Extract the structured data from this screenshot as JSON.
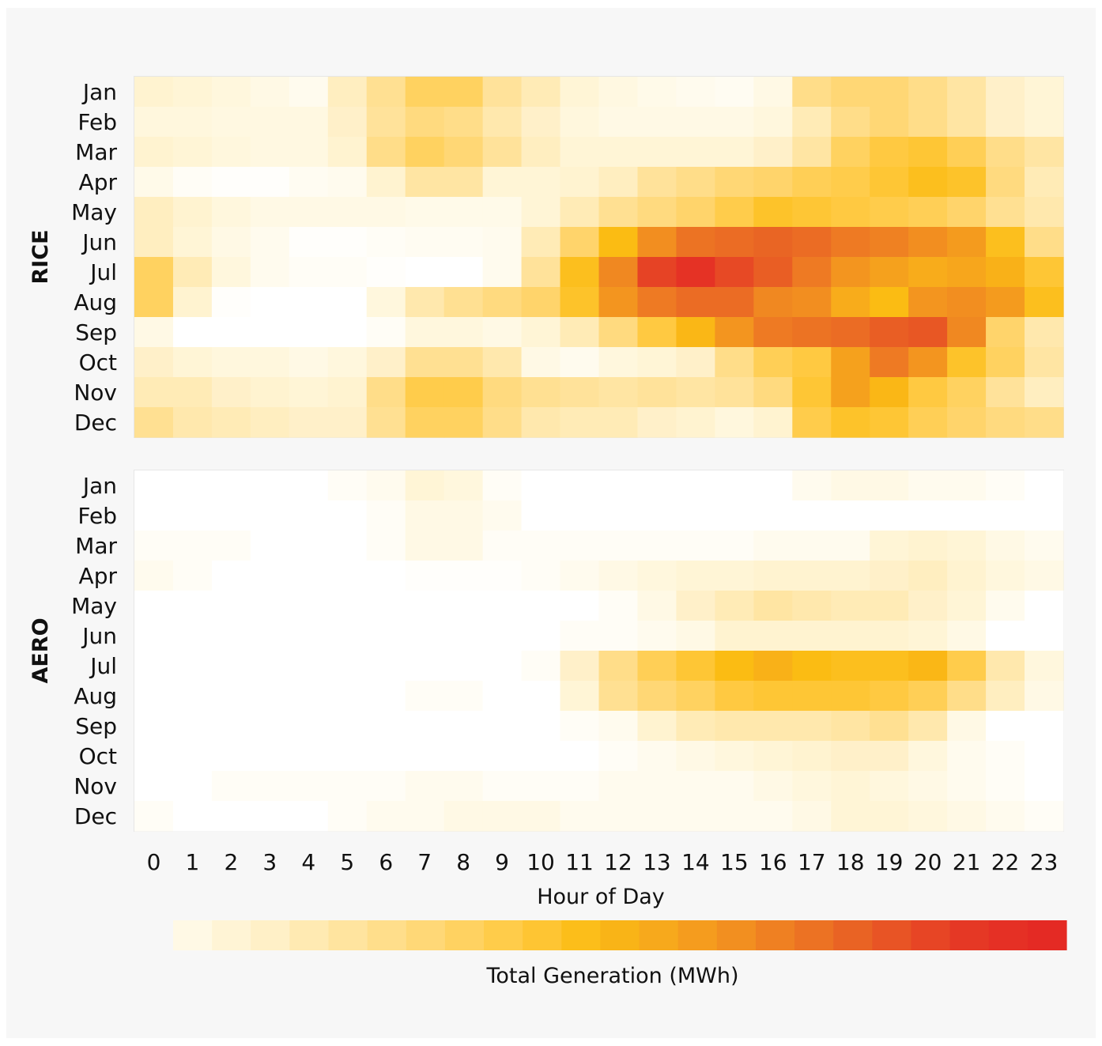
{
  "chart_data": {
    "type": "heatmap",
    "xlabel": "Hour of Day",
    "colorbar_label": "Total Generation (MWh)",
    "x": [
      "0",
      "1",
      "2",
      "3",
      "4",
      "5",
      "6",
      "7",
      "8",
      "9",
      "10",
      "11",
      "12",
      "13",
      "14",
      "15",
      "16",
      "17",
      "18",
      "19",
      "20",
      "21",
      "22",
      "23"
    ],
    "y": [
      "Jan",
      "Feb",
      "Mar",
      "Apr",
      "May",
      "Jun",
      "Jul",
      "Aug",
      "Sep",
      "Oct",
      "Nov",
      "Dec"
    ],
    "scale": "relative intensity 0-1 (colorbar has no printed ticks)",
    "colormap": [
      "#ffffff",
      "#fff8e0",
      "#fff0c8",
      "#ffe6a6",
      "#ffdc86",
      "#ffd262",
      "#ffc83c",
      "#fbbc13",
      "#f7a91c",
      "#f3941f",
      "#ee7c23",
      "#e96324",
      "#e74a25",
      "#e53425",
      "#e42a24"
    ],
    "panels": [
      {
        "name": "RICE",
        "z": [
          [
            0.12,
            0.1,
            0.08,
            0.06,
            0.04,
            0.16,
            0.26,
            0.36,
            0.36,
            0.24,
            0.18,
            0.1,
            0.07,
            0.05,
            0.04,
            0.03,
            0.06,
            0.28,
            0.32,
            0.32,
            0.28,
            0.22,
            0.14,
            0.1
          ],
          [
            0.08,
            0.08,
            0.07,
            0.07,
            0.07,
            0.14,
            0.24,
            0.3,
            0.28,
            0.2,
            0.14,
            0.08,
            0.06,
            0.06,
            0.06,
            0.06,
            0.08,
            0.18,
            0.28,
            0.32,
            0.28,
            0.22,
            0.14,
            0.1
          ],
          [
            0.12,
            0.1,
            0.08,
            0.07,
            0.07,
            0.12,
            0.28,
            0.36,
            0.32,
            0.24,
            0.16,
            0.1,
            0.1,
            0.1,
            0.1,
            0.1,
            0.14,
            0.22,
            0.36,
            0.42,
            0.44,
            0.38,
            0.28,
            0.22
          ],
          [
            0.05,
            0.02,
            0.01,
            0.01,
            0.03,
            0.04,
            0.12,
            0.22,
            0.22,
            0.1,
            0.1,
            0.12,
            0.16,
            0.24,
            0.28,
            0.32,
            0.34,
            0.38,
            0.4,
            0.44,
            0.48,
            0.46,
            0.3,
            0.18
          ],
          [
            0.16,
            0.12,
            0.08,
            0.06,
            0.06,
            0.06,
            0.06,
            0.05,
            0.05,
            0.05,
            0.1,
            0.18,
            0.26,
            0.3,
            0.34,
            0.4,
            0.46,
            0.44,
            0.42,
            0.4,
            0.38,
            0.34,
            0.26,
            0.2
          ],
          [
            0.16,
            0.1,
            0.06,
            0.04,
            0.01,
            0.01,
            0.02,
            0.03,
            0.03,
            0.04,
            0.18,
            0.34,
            0.5,
            0.66,
            0.74,
            0.76,
            0.78,
            0.76,
            0.72,
            0.7,
            0.66,
            0.62,
            0.48,
            0.28
          ],
          [
            0.36,
            0.18,
            0.08,
            0.04,
            0.02,
            0.02,
            0.01,
            0.0,
            0.0,
            0.04,
            0.24,
            0.48,
            0.68,
            0.88,
            0.94,
            0.86,
            0.8,
            0.72,
            0.64,
            0.6,
            0.56,
            0.58,
            0.54,
            0.44
          ],
          [
            0.36,
            0.12,
            0.01,
            0.0,
            0.0,
            0.0,
            0.08,
            0.2,
            0.26,
            0.3,
            0.34,
            0.46,
            0.64,
            0.72,
            0.76,
            0.76,
            0.68,
            0.66,
            0.56,
            0.5,
            0.64,
            0.66,
            0.62,
            0.48
          ],
          [
            0.06,
            0.0,
            0.0,
            0.0,
            0.0,
            0.0,
            0.02,
            0.08,
            0.08,
            0.06,
            0.1,
            0.18,
            0.3,
            0.42,
            0.52,
            0.64,
            0.72,
            0.74,
            0.76,
            0.8,
            0.82,
            0.68,
            0.34,
            0.2
          ],
          [
            0.14,
            0.1,
            0.08,
            0.08,
            0.06,
            0.08,
            0.14,
            0.26,
            0.26,
            0.2,
            0.06,
            0.04,
            0.08,
            0.1,
            0.14,
            0.28,
            0.38,
            0.42,
            0.6,
            0.72,
            0.64,
            0.46,
            0.36,
            0.22
          ],
          [
            0.18,
            0.18,
            0.14,
            0.12,
            0.1,
            0.12,
            0.28,
            0.4,
            0.4,
            0.3,
            0.26,
            0.24,
            0.22,
            0.24,
            0.22,
            0.24,
            0.3,
            0.44,
            0.6,
            0.52,
            0.42,
            0.36,
            0.24,
            0.16
          ],
          [
            0.26,
            0.2,
            0.18,
            0.16,
            0.14,
            0.14,
            0.26,
            0.36,
            0.36,
            0.28,
            0.2,
            0.18,
            0.18,
            0.14,
            0.12,
            0.08,
            0.12,
            0.4,
            0.46,
            0.44,
            0.38,
            0.34,
            0.3,
            0.28
          ]
        ]
      },
      {
        "name": "AERO",
        "z": [
          [
            0.0,
            0.0,
            0.0,
            0.0,
            0.0,
            0.02,
            0.04,
            0.1,
            0.08,
            0.02,
            0.0,
            0.0,
            0.0,
            0.0,
            0.0,
            0.0,
            0.0,
            0.04,
            0.06,
            0.06,
            0.04,
            0.04,
            0.02,
            0.0
          ],
          [
            0.0,
            0.0,
            0.0,
            0.0,
            0.0,
            0.0,
            0.02,
            0.06,
            0.06,
            0.04,
            0.0,
            0.0,
            0.0,
            0.0,
            0.0,
            0.0,
            0.0,
            0.0,
            0.0,
            0.0,
            0.0,
            0.0,
            0.0,
            0.0
          ],
          [
            0.02,
            0.02,
            0.02,
            0.0,
            0.0,
            0.0,
            0.02,
            0.06,
            0.06,
            0.02,
            0.02,
            0.02,
            0.02,
            0.02,
            0.02,
            0.02,
            0.04,
            0.04,
            0.04,
            0.1,
            0.12,
            0.1,
            0.06,
            0.04
          ],
          [
            0.04,
            0.02,
            0.0,
            0.0,
            0.0,
            0.0,
            0.0,
            0.01,
            0.01,
            0.01,
            0.02,
            0.04,
            0.06,
            0.08,
            0.1,
            0.1,
            0.12,
            0.12,
            0.12,
            0.14,
            0.16,
            0.12,
            0.08,
            0.06
          ],
          [
            0.0,
            0.0,
            0.0,
            0.0,
            0.0,
            0.0,
            0.0,
            0.0,
            0.0,
            0.0,
            0.0,
            0.0,
            0.02,
            0.06,
            0.14,
            0.18,
            0.22,
            0.2,
            0.18,
            0.18,
            0.14,
            0.1,
            0.04,
            0.0
          ],
          [
            0.0,
            0.0,
            0.0,
            0.0,
            0.0,
            0.0,
            0.0,
            0.0,
            0.0,
            0.0,
            0.0,
            0.02,
            0.02,
            0.04,
            0.06,
            0.12,
            0.12,
            0.12,
            0.12,
            0.12,
            0.1,
            0.06,
            0.0,
            0.0
          ],
          [
            0.0,
            0.0,
            0.0,
            0.0,
            0.0,
            0.0,
            0.0,
            0.0,
            0.0,
            0.0,
            0.02,
            0.14,
            0.28,
            0.38,
            0.44,
            0.5,
            0.54,
            0.5,
            0.48,
            0.48,
            0.52,
            0.4,
            0.2,
            0.08
          ],
          [
            0.0,
            0.0,
            0.0,
            0.0,
            0.0,
            0.0,
            0.0,
            0.02,
            0.02,
            0.0,
            0.0,
            0.1,
            0.26,
            0.32,
            0.36,
            0.42,
            0.44,
            0.44,
            0.44,
            0.42,
            0.38,
            0.28,
            0.16,
            0.06
          ],
          [
            0.0,
            0.0,
            0.0,
            0.0,
            0.0,
            0.0,
            0.0,
            0.0,
            0.0,
            0.0,
            0.0,
            0.02,
            0.04,
            0.12,
            0.18,
            0.2,
            0.2,
            0.2,
            0.22,
            0.26,
            0.2,
            0.06,
            0.0,
            0.0
          ],
          [
            0.0,
            0.0,
            0.0,
            0.0,
            0.0,
            0.0,
            0.0,
            0.0,
            0.0,
            0.0,
            0.0,
            0.0,
            0.02,
            0.04,
            0.06,
            0.08,
            0.1,
            0.12,
            0.14,
            0.14,
            0.08,
            0.04,
            0.02,
            0.0
          ],
          [
            0.0,
            0.0,
            0.02,
            0.02,
            0.02,
            0.02,
            0.02,
            0.04,
            0.04,
            0.02,
            0.02,
            0.02,
            0.04,
            0.04,
            0.04,
            0.04,
            0.06,
            0.08,
            0.1,
            0.08,
            0.06,
            0.04,
            0.02,
            0.0
          ],
          [
            0.02,
            0.0,
            0.0,
            0.0,
            0.0,
            0.02,
            0.04,
            0.04,
            0.06,
            0.06,
            0.06,
            0.04,
            0.04,
            0.04,
            0.04,
            0.04,
            0.04,
            0.06,
            0.1,
            0.1,
            0.08,
            0.06,
            0.04,
            0.02
          ]
        ]
      }
    ]
  }
}
